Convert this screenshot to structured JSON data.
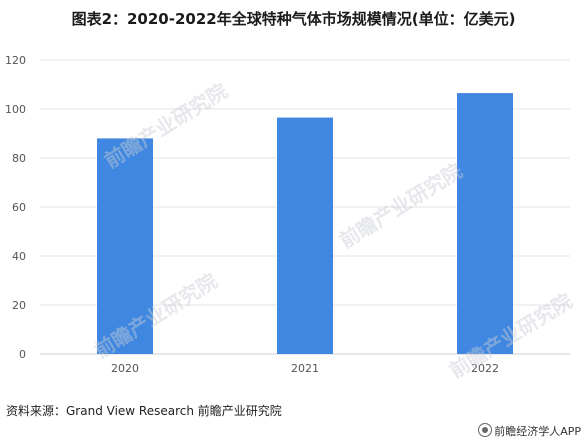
{
  "title": "图表2：2020-2022年全球特种气体市场规模情况(单位：亿美元)",
  "source": "资料来源：Grand View Research 前瞻产业研究院",
  "watermark": "前瞻产业研究院",
  "brand": "前瞻经济学人APP",
  "colors": {
    "bar": "#3f87e0",
    "grid": "#e3e3e3",
    "axis": "#cfcfcf",
    "tick": "#555555"
  },
  "chart_data": {
    "type": "bar",
    "categories": [
      "2020",
      "2021",
      "2022"
    ],
    "values": [
      88,
      96.5,
      106.5
    ],
    "ylim": [
      0,
      120
    ],
    "yticks": [
      0,
      20,
      40,
      60,
      80,
      100,
      120
    ],
    "grid": true,
    "legend": "none"
  }
}
